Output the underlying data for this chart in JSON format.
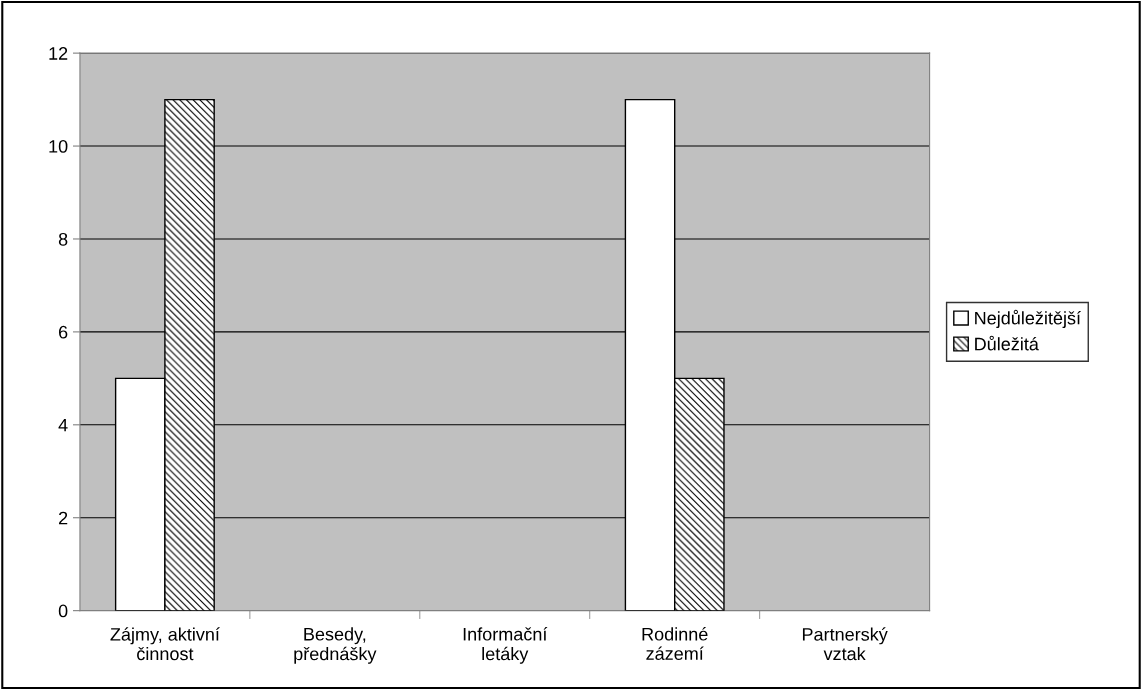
{
  "chart_data": {
    "type": "bar",
    "categories": [
      "Zájmy, aktivní\nčinnost",
      "Besedy,\npřednášky",
      "Informační\nletáky",
      "Rodinné\nzázemí",
      "Partnerský\nvztak"
    ],
    "series": [
      {
        "name": "Nejdůležitější",
        "color": "#ffffff",
        "values": [
          5,
          0,
          0,
          11,
          0
        ]
      },
      {
        "name": "Důležitá",
        "color": "#000000",
        "values": [
          11,
          0,
          0,
          5,
          0
        ]
      }
    ],
    "ylim": [
      0,
      12
    ],
    "yticks": [
      0,
      2,
      4,
      6,
      8,
      10,
      12
    ],
    "grid": "y",
    "legend": "right"
  }
}
